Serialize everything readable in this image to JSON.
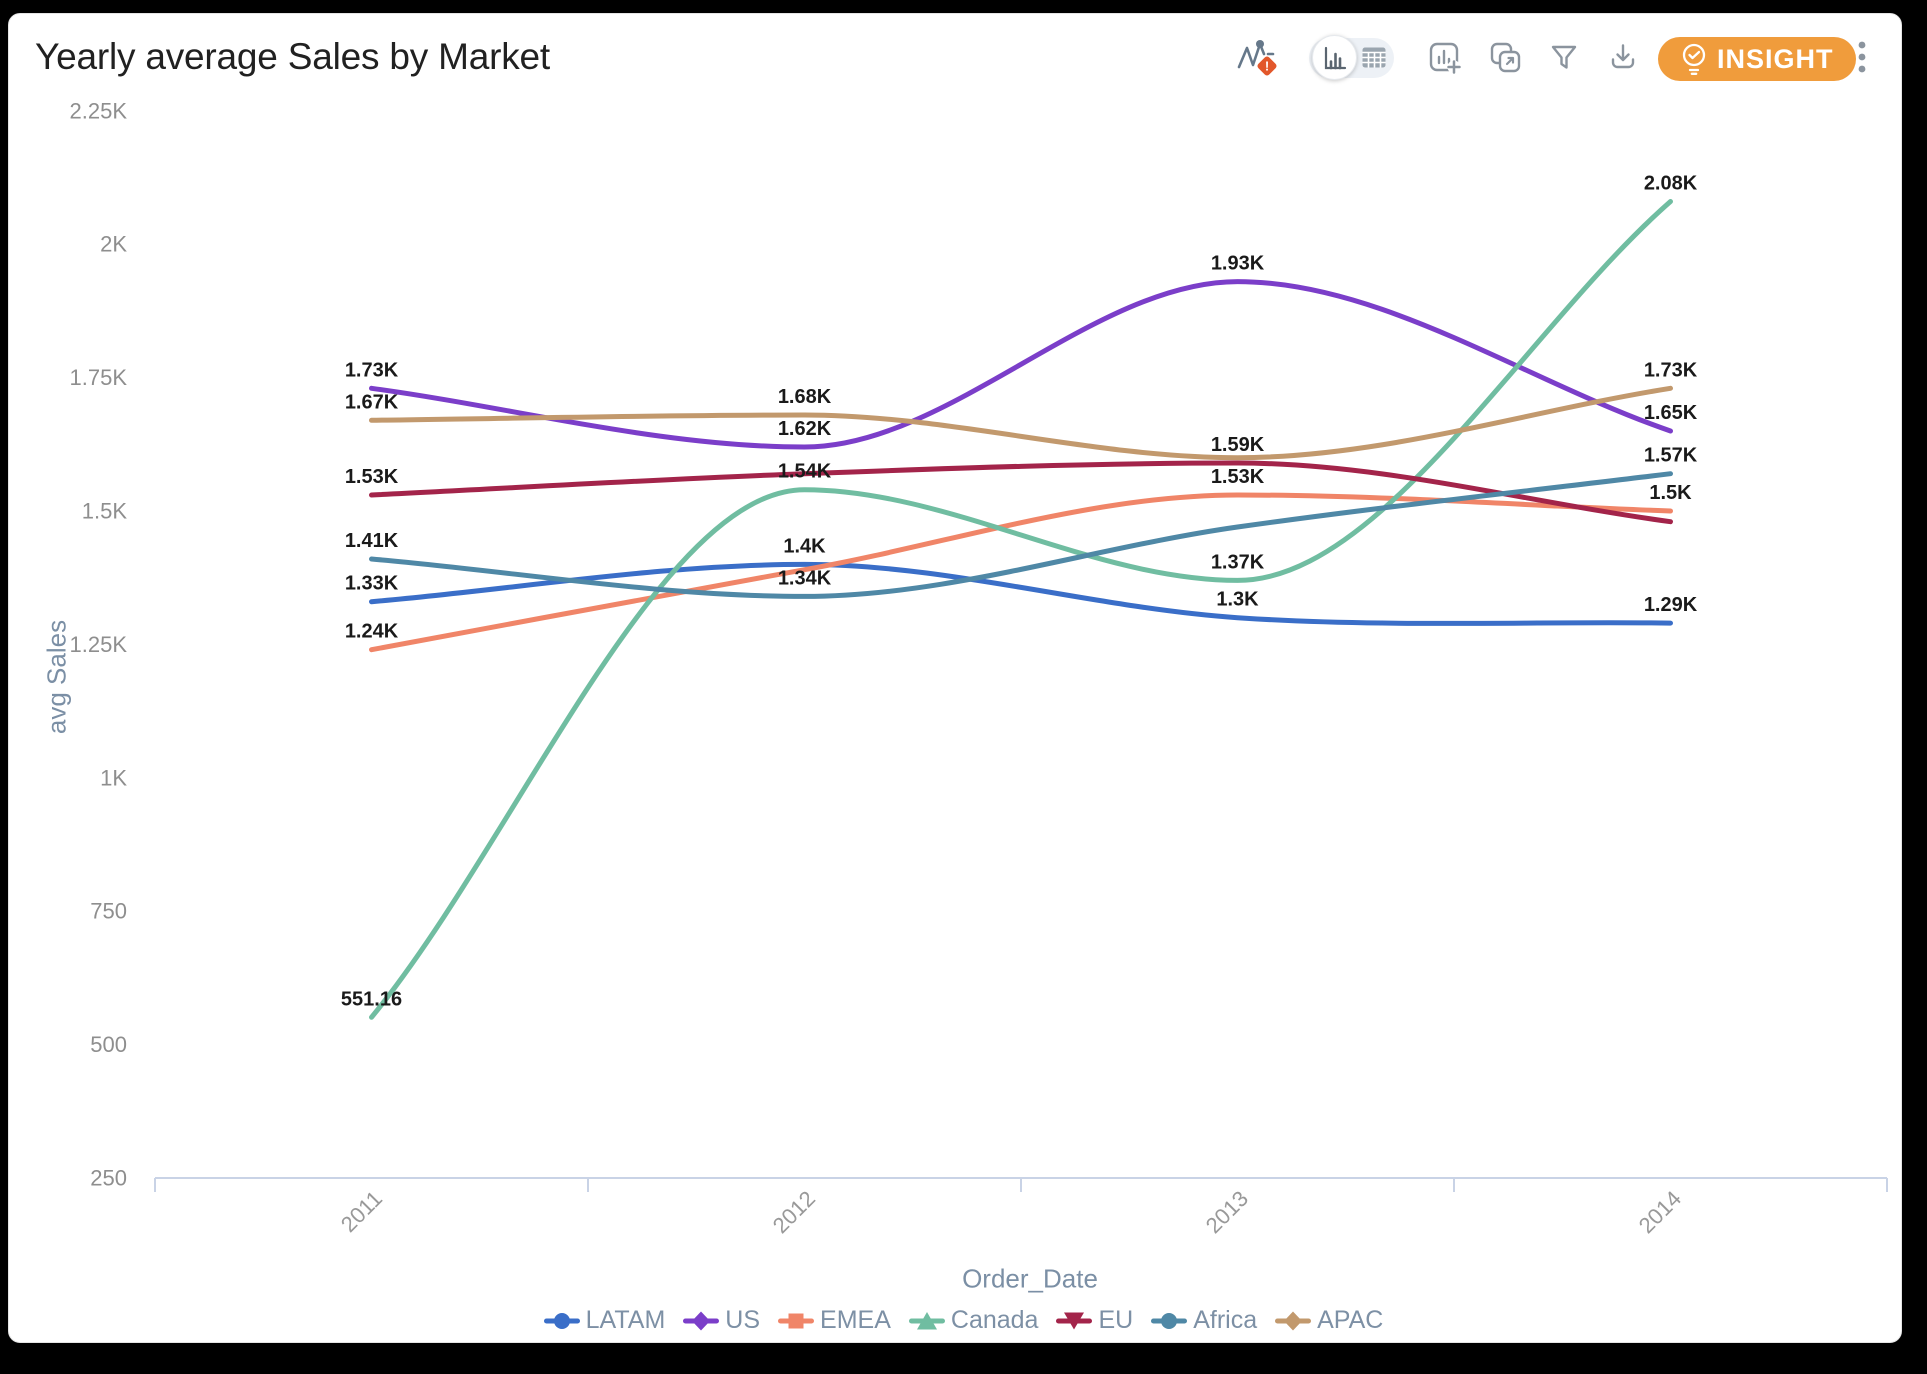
{
  "header": {
    "title": "Yearly average Sales by Market"
  },
  "toolbar": {
    "insight_label": "INSIGHT",
    "icons": [
      "anomaly-alert",
      "chart-view",
      "table-view",
      "add-chart",
      "duplicate",
      "filter",
      "download",
      "insight-bulb",
      "more-options"
    ]
  },
  "chart_data": {
    "type": "line",
    "title": "Yearly average Sales by Market",
    "xlabel": "Order_Date",
    "ylabel": "avg Sales",
    "categories": [
      "2011",
      "2012",
      "2013",
      "2014"
    ],
    "y_ticks": [
      "250",
      "500",
      "750",
      "1K",
      "1.25K",
      "1.5K",
      "1.75K",
      "2K",
      "2.25K"
    ],
    "ylim": [
      250,
      2250
    ],
    "grid": false,
    "smooth": true,
    "legend_position": "bottom",
    "series": [
      {
        "name": "LATAM",
        "color": "#3a6ec8",
        "symbol": "circle",
        "values": [
          1330,
          1400,
          1300,
          1290
        ],
        "point_labels": [
          "1.33K",
          "1.4K",
          "1.3K",
          "1.29K"
        ]
      },
      {
        "name": "US",
        "color": "#7b3ec9",
        "symbol": "diamond",
        "values": [
          1730,
          1620,
          1930,
          1650
        ],
        "point_labels": [
          "1.73K",
          "1.62K",
          "1.93K",
          "1.65K"
        ]
      },
      {
        "name": "EMEA",
        "color": "#f08568",
        "symbol": "square",
        "values": [
          1240,
          1390,
          1530,
          1500
        ],
        "point_labels": [
          "1.24K",
          null,
          "1.53K",
          "1.5K"
        ]
      },
      {
        "name": "Canada",
        "color": "#70bda1",
        "symbol": "triangle",
        "values": [
          551.16,
          1540,
          1370,
          2080
        ],
        "point_labels": [
          "551.16",
          "1.54K",
          "1.37K",
          "2.08K"
        ]
      },
      {
        "name": "EU",
        "color": "#a3244a",
        "symbol": "triangle-down",
        "values": [
          1530,
          1570,
          1590,
          1480
        ],
        "point_labels": [
          "1.53K",
          null,
          "1.59K",
          null
        ]
      },
      {
        "name": "Africa",
        "color": "#4f88a6",
        "symbol": "circle",
        "values": [
          1410,
          1340,
          1470,
          1570
        ],
        "point_labels": [
          "1.41K",
          "1.34K",
          null,
          "1.57K"
        ]
      },
      {
        "name": "APAC",
        "color": "#c2996d",
        "symbol": "diamond",
        "values": [
          1670,
          1680,
          1600,
          1730
        ],
        "point_labels": [
          "1.67K",
          "1.68K",
          null,
          "1.73K"
        ]
      }
    ]
  }
}
